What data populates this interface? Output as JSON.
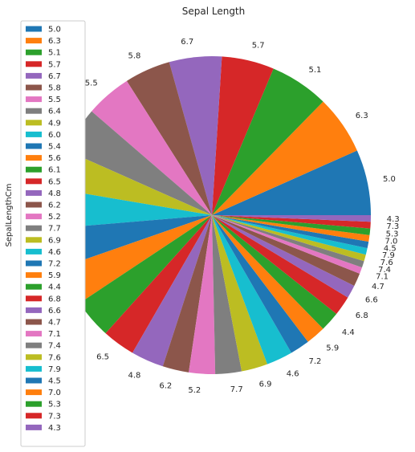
{
  "chart_data": {
    "type": "pie",
    "title": "Sepal Length",
    "ylabel": "SepalLengthCm",
    "start_angle_deg": 0,
    "direction": "counterclockwise",
    "legend_position": "upper-left",
    "slices": [
      {
        "label": "5.0",
        "value": 10,
        "color": "#1f77b4"
      },
      {
        "label": "6.3",
        "value": 9,
        "color": "#ff7f0e"
      },
      {
        "label": "5.1",
        "value": 9,
        "color": "#2ca02c"
      },
      {
        "label": "5.7",
        "value": 8,
        "color": "#d62728"
      },
      {
        "label": "6.7",
        "value": 8,
        "color": "#9467bd"
      },
      {
        "label": "5.8",
        "value": 7,
        "color": "#8c564b"
      },
      {
        "label": "5.5",
        "value": 7,
        "color": "#e377c2"
      },
      {
        "label": "6.4",
        "value": 7,
        "color": "#7f7f7f"
      },
      {
        "label": "4.9",
        "value": 6,
        "color": "#bcbd22"
      },
      {
        "label": "6.0",
        "value": 6,
        "color": "#17becf"
      },
      {
        "label": "5.4",
        "value": 6,
        "color": "#1f77b4"
      },
      {
        "label": "5.6",
        "value": 6,
        "color": "#ff7f0e"
      },
      {
        "label": "6.1",
        "value": 6,
        "color": "#2ca02c"
      },
      {
        "label": "6.5",
        "value": 5,
        "color": "#d62728"
      },
      {
        "label": "4.8",
        "value": 5,
        "color": "#9467bd"
      },
      {
        "label": "6.2",
        "value": 4,
        "color": "#8c564b"
      },
      {
        "label": "5.2",
        "value": 4,
        "color": "#e377c2"
      },
      {
        "label": "7.7",
        "value": 4,
        "color": "#7f7f7f"
      },
      {
        "label": "6.9",
        "value": 4,
        "color": "#bcbd22"
      },
      {
        "label": "4.6",
        "value": 4,
        "color": "#17becf"
      },
      {
        "label": "7.2",
        "value": 3,
        "color": "#1f77b4"
      },
      {
        "label": "5.9",
        "value": 3,
        "color": "#ff7f0e"
      },
      {
        "label": "4.4",
        "value": 3,
        "color": "#2ca02c"
      },
      {
        "label": "6.8",
        "value": 3,
        "color": "#d62728"
      },
      {
        "label": "6.6",
        "value": 2,
        "color": "#9467bd"
      },
      {
        "label": "4.7",
        "value": 2,
        "color": "#8c564b"
      },
      {
        "label": "7.1",
        "value": 1,
        "color": "#e377c2"
      },
      {
        "label": "7.4",
        "value": 1,
        "color": "#7f7f7f"
      },
      {
        "label": "7.6",
        "value": 1,
        "color": "#bcbd22"
      },
      {
        "label": "7.9",
        "value": 1,
        "color": "#17becf"
      },
      {
        "label": "4.5",
        "value": 1,
        "color": "#1f77b4"
      },
      {
        "label": "7.0",
        "value": 1,
        "color": "#ff7f0e"
      },
      {
        "label": "5.3",
        "value": 1,
        "color": "#2ca02c"
      },
      {
        "label": "7.3",
        "value": 1,
        "color": "#d62728"
      },
      {
        "label": "4.3",
        "value": 1,
        "color": "#9467bd"
      }
    ]
  }
}
